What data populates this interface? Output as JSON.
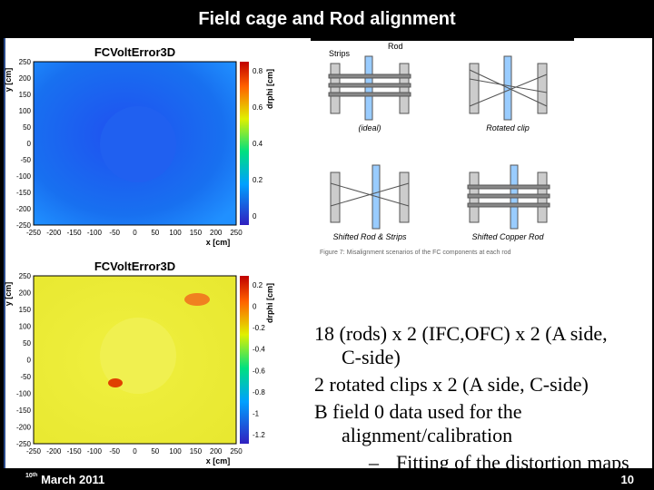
{
  "header": {
    "title": "Field cage and Rod alignment"
  },
  "plots": [
    {
      "title": "FCVoltError3D",
      "ylabel": "y [cm]",
      "xlabel": "x [cm]",
      "zlabel": "drphi [cm]",
      "yticks": [
        "250",
        "200",
        "150",
        "100",
        "50",
        "0",
        "-50",
        "-100",
        "-150",
        "-200",
        "-250"
      ],
      "xticks": [
        "-250",
        "-200",
        "-150",
        "-100",
        "-50",
        "0",
        "50",
        "100",
        "150",
        "200",
        "250"
      ],
      "zticks": [
        "0.8",
        "0.6",
        "0.4",
        "0.2",
        "0"
      ]
    },
    {
      "title": "FCVoltError3D",
      "ylabel": "y [cm]",
      "xlabel": "x [cm]",
      "zlabel": "drphi [cm]",
      "yticks": [
        "250",
        "200",
        "150",
        "100",
        "50",
        "0",
        "-50",
        "-100",
        "-150",
        "-200",
        "-250"
      ],
      "xticks": [
        "-250",
        "-200",
        "-150",
        "-100",
        "-50",
        "0",
        "50",
        "100",
        "150",
        "200",
        "250"
      ],
      "zticks": [
        "0.2",
        "0",
        "-0.2",
        "-0.4",
        "-0.6",
        "-0.8",
        "-1",
        "-1.2"
      ]
    }
  ],
  "diagram": {
    "labels": [
      "Strips",
      "Rod",
      "(ideal)",
      "Rotated clip",
      "Shifted Rod & Strips",
      "Shifted Copper Rod"
    ],
    "caption": "Figure 7: Misalignment scenarios of the FC components at each rod"
  },
  "bullets": [
    "18 (rods) x 2 (IFC,OFC) x 2 (A side, C-side)",
    "2 rotated clips x 2 (A side, C-side)",
    "B field 0 data used for the alignment/calibration"
  ],
  "subbullets": [
    {
      "marker": "–",
      "text": "Fitting of the distortion maps"
    }
  ],
  "footer": {
    "day": "10",
    "suffix": "th",
    "date": " March 2011",
    "page": "10"
  }
}
